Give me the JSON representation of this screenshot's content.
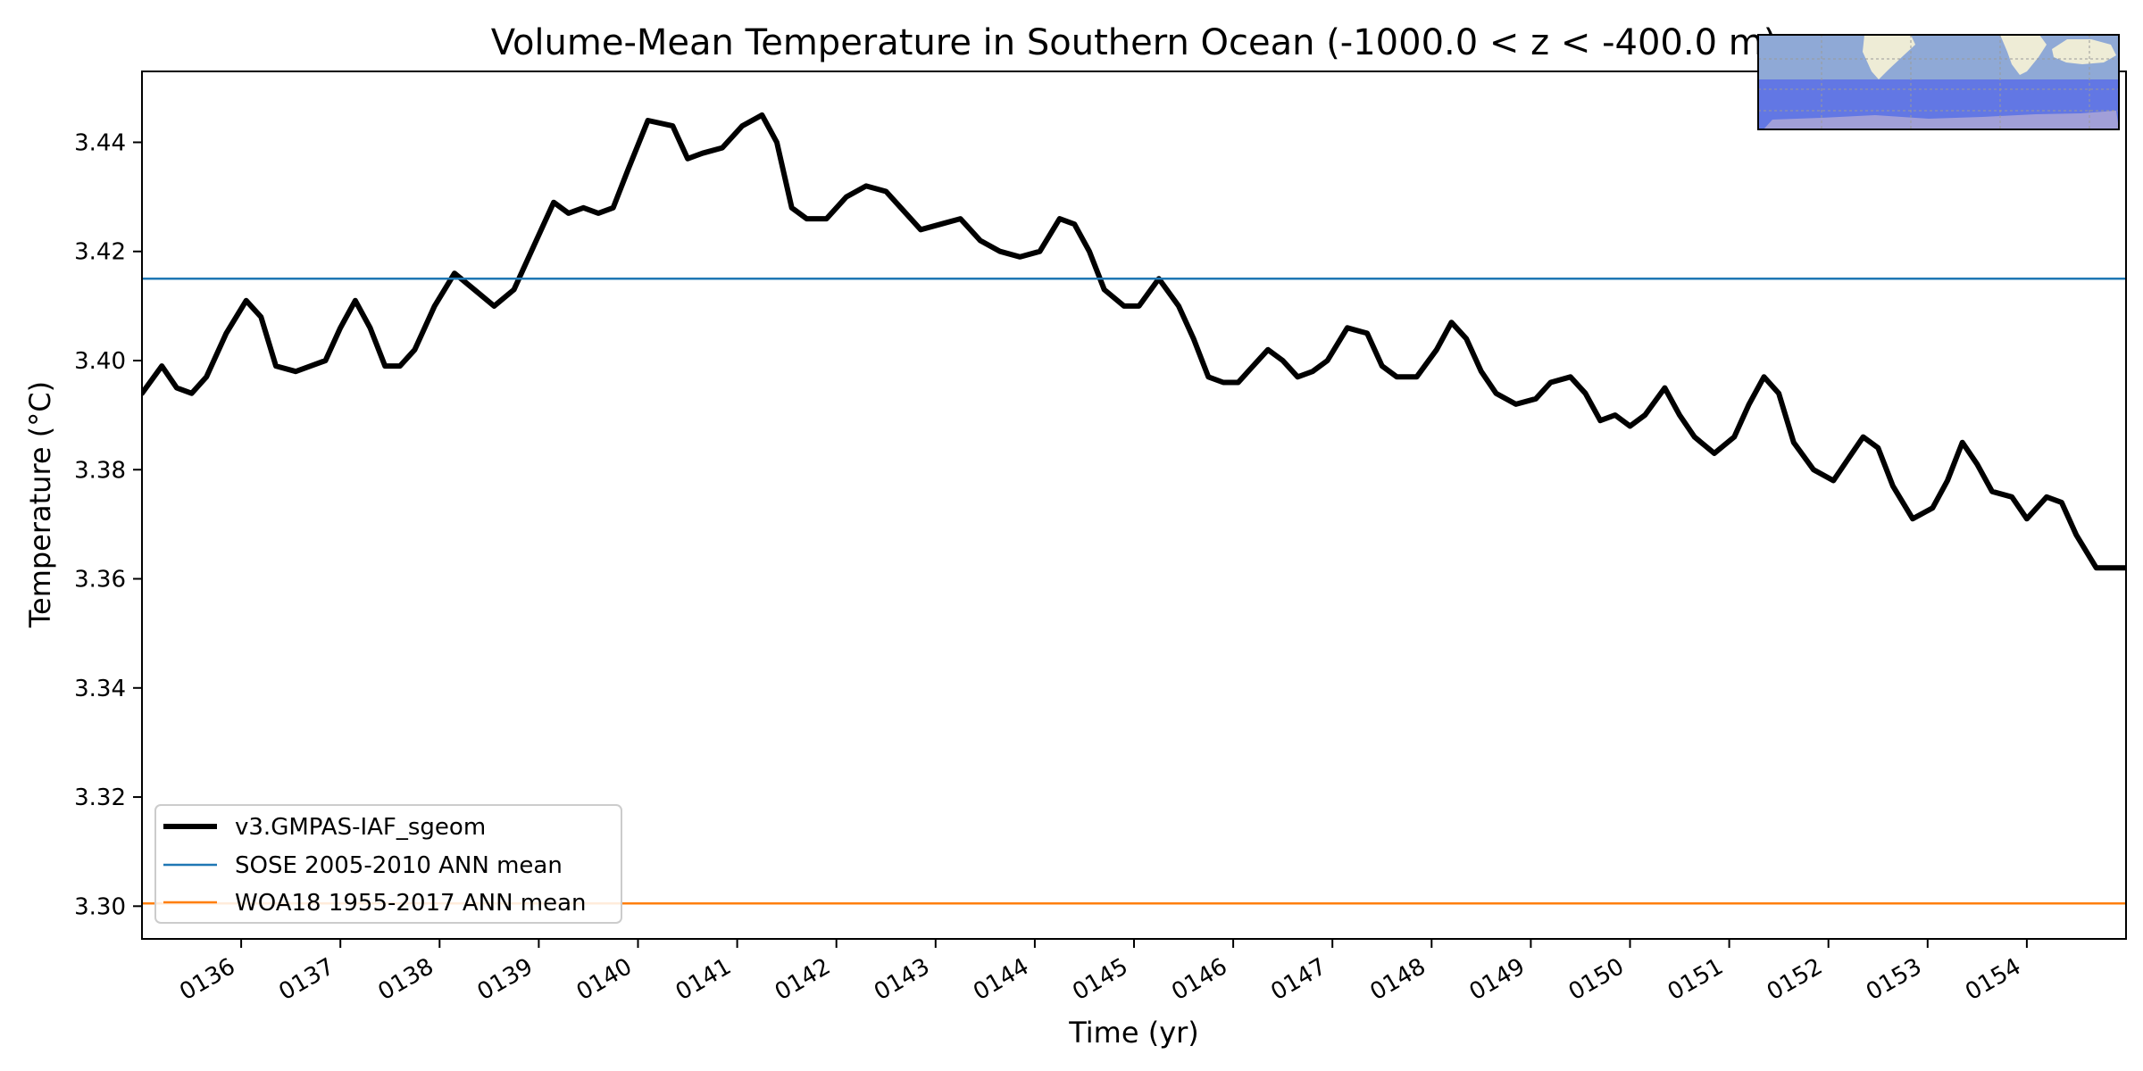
{
  "chart_data": {
    "type": "line",
    "title": "Volume-Mean Temperature in Southern Ocean (-1000.0 < z < -400.0 m)",
    "xlabel": "Time (yr)",
    "ylabel": "Temperature (°C)",
    "xlim": [
      135.0,
      155.0
    ],
    "ylim": [
      3.294,
      3.453
    ],
    "xticks": [
      136,
      137,
      138,
      139,
      140,
      141,
      142,
      143,
      144,
      145,
      146,
      147,
      148,
      149,
      150,
      151,
      152,
      153,
      154
    ],
    "xtick_labels": [
      "0136",
      "0137",
      "0138",
      "0139",
      "0140",
      "0141",
      "0142",
      "0143",
      "0144",
      "0145",
      "0146",
      "0147",
      "0148",
      "0149",
      "0150",
      "0151",
      "0152",
      "0153",
      "0154"
    ],
    "yticks": [
      3.3,
      3.32,
      3.34,
      3.36,
      3.38,
      3.4,
      3.42,
      3.44
    ],
    "ytick_labels": [
      "3.30",
      "3.32",
      "3.34",
      "3.36",
      "3.38",
      "3.40",
      "3.42",
      "3.44"
    ],
    "legend_position": "lower-left",
    "series": [
      {
        "name": "v3.GMPAS-IAF_sgeom",
        "color": "#000000",
        "style": "thick",
        "points": [
          [
            135.0,
            3.394
          ],
          [
            135.2,
            3.399
          ],
          [
            135.35,
            3.395
          ],
          [
            135.5,
            3.394
          ],
          [
            135.65,
            3.397
          ],
          [
            135.85,
            3.405
          ],
          [
            136.05,
            3.411
          ],
          [
            136.2,
            3.408
          ],
          [
            136.35,
            3.399
          ],
          [
            136.55,
            3.398
          ],
          [
            136.7,
            3.399
          ],
          [
            136.85,
            3.4
          ],
          [
            137.0,
            3.406
          ],
          [
            137.15,
            3.411
          ],
          [
            137.3,
            3.406
          ],
          [
            137.45,
            3.399
          ],
          [
            137.6,
            3.399
          ],
          [
            137.75,
            3.402
          ],
          [
            137.95,
            3.41
          ],
          [
            138.15,
            3.416
          ],
          [
            138.35,
            3.413
          ],
          [
            138.55,
            3.41
          ],
          [
            138.75,
            3.413
          ],
          [
            138.95,
            3.421
          ],
          [
            139.15,
            3.429
          ],
          [
            139.3,
            3.427
          ],
          [
            139.45,
            3.428
          ],
          [
            139.6,
            3.427
          ],
          [
            139.75,
            3.428
          ],
          [
            139.9,
            3.435
          ],
          [
            140.1,
            3.444
          ],
          [
            140.35,
            3.443
          ],
          [
            140.5,
            3.437
          ],
          [
            140.65,
            3.438
          ],
          [
            140.85,
            3.439
          ],
          [
            141.05,
            3.443
          ],
          [
            141.25,
            3.445
          ],
          [
            141.4,
            3.44
          ],
          [
            141.55,
            3.428
          ],
          [
            141.7,
            3.426
          ],
          [
            141.9,
            3.426
          ],
          [
            142.1,
            3.43
          ],
          [
            142.3,
            3.432
          ],
          [
            142.5,
            3.431
          ],
          [
            142.65,
            3.428
          ],
          [
            142.85,
            3.424
          ],
          [
            143.05,
            3.425
          ],
          [
            143.25,
            3.426
          ],
          [
            143.45,
            3.422
          ],
          [
            143.65,
            3.42
          ],
          [
            143.85,
            3.419
          ],
          [
            144.05,
            3.42
          ],
          [
            144.25,
            3.426
          ],
          [
            144.4,
            3.425
          ],
          [
            144.55,
            3.42
          ],
          [
            144.7,
            3.413
          ],
          [
            144.9,
            3.41
          ],
          [
            145.05,
            3.41
          ],
          [
            145.25,
            3.415
          ],
          [
            145.45,
            3.41
          ],
          [
            145.6,
            3.404
          ],
          [
            145.75,
            3.397
          ],
          [
            145.9,
            3.396
          ],
          [
            146.05,
            3.396
          ],
          [
            146.2,
            3.399
          ],
          [
            146.35,
            3.402
          ],
          [
            146.5,
            3.4
          ],
          [
            146.65,
            3.397
          ],
          [
            146.8,
            3.398
          ],
          [
            146.95,
            3.4
          ],
          [
            147.15,
            3.406
          ],
          [
            147.35,
            3.405
          ],
          [
            147.5,
            3.399
          ],
          [
            147.65,
            3.397
          ],
          [
            147.85,
            3.397
          ],
          [
            148.05,
            3.402
          ],
          [
            148.2,
            3.407
          ],
          [
            148.35,
            3.404
          ],
          [
            148.5,
            3.398
          ],
          [
            148.65,
            3.394
          ],
          [
            148.85,
            3.392
          ],
          [
            149.05,
            3.393
          ],
          [
            149.2,
            3.396
          ],
          [
            149.4,
            3.397
          ],
          [
            149.55,
            3.394
          ],
          [
            149.7,
            3.389
          ],
          [
            149.85,
            3.39
          ],
          [
            150.0,
            3.388
          ],
          [
            150.15,
            3.39
          ],
          [
            150.35,
            3.395
          ],
          [
            150.5,
            3.39
          ],
          [
            150.65,
            3.386
          ],
          [
            150.85,
            3.383
          ],
          [
            151.05,
            3.386
          ],
          [
            151.2,
            3.392
          ],
          [
            151.35,
            3.397
          ],
          [
            151.5,
            3.394
          ],
          [
            151.65,
            3.385
          ],
          [
            151.85,
            3.38
          ],
          [
            152.05,
            3.378
          ],
          [
            152.2,
            3.382
          ],
          [
            152.35,
            3.386
          ],
          [
            152.5,
            3.384
          ],
          [
            152.65,
            3.377
          ],
          [
            152.85,
            3.371
          ],
          [
            153.05,
            3.373
          ],
          [
            153.2,
            3.378
          ],
          [
            153.35,
            3.385
          ],
          [
            153.5,
            3.381
          ],
          [
            153.65,
            3.376
          ],
          [
            153.85,
            3.375
          ],
          [
            154.0,
            3.371
          ],
          [
            154.2,
            3.375
          ],
          [
            154.35,
            3.374
          ],
          [
            154.5,
            3.368
          ],
          [
            154.7,
            3.362
          ],
          [
            154.85,
            3.362
          ],
          [
            155.0,
            3.362
          ]
        ]
      },
      {
        "name": "SOSE 2005-2010 ANN mean",
        "color": "#1f77b4",
        "style": "hline",
        "value": 3.415
      },
      {
        "name": "WOA18 1955-2017 ANN mean",
        "color": "#ff7f0e",
        "style": "hline",
        "value": 3.3005
      }
    ]
  },
  "inset_map": {
    "ocean_color": "#8fa9d6",
    "region_color": "#5b6fe6",
    "land_color": "#eeecd6"
  }
}
